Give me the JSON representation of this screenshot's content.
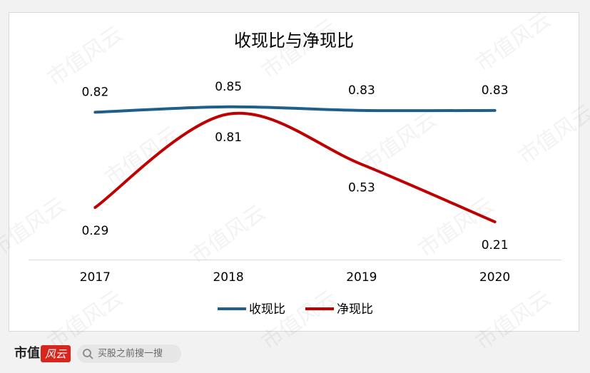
{
  "chart_data": {
    "type": "line",
    "title": "收现比与净现比",
    "categories": [
      "2017",
      "2018",
      "2019",
      "2020"
    ],
    "series": [
      {
        "name": "收现比",
        "color": "#1f5f8b",
        "values": [
          0.82,
          0.85,
          0.83,
          0.83
        ]
      },
      {
        "name": "净现比",
        "color": "#c00000",
        "values": [
          0.29,
          0.81,
          0.53,
          0.21
        ]
      }
    ],
    "ylim": [
      0,
      1
    ],
    "legend": "bottom",
    "smooth": true
  },
  "watermark": "市值风云",
  "footer": {
    "logo": "市值",
    "logo_mark": "风云",
    "search": "买股之前搜一搜"
  }
}
